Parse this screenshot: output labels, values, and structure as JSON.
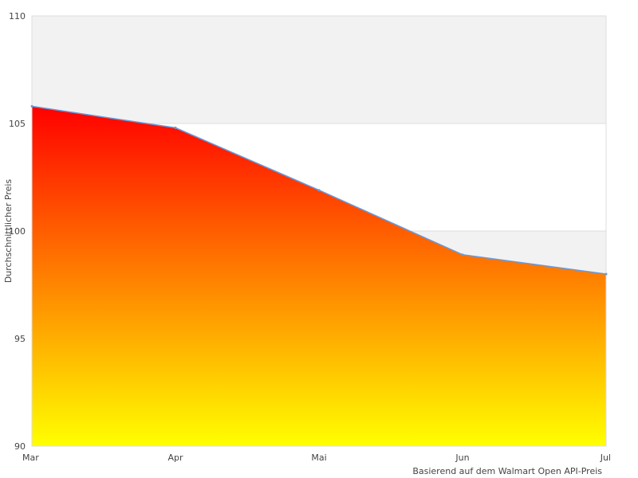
{
  "chart_data": {
    "type": "area",
    "x": [
      "Mar",
      "Apr",
      "Mai",
      "Jun",
      "Jul"
    ],
    "series": [
      {
        "values": [
          105.8,
          104.8,
          101.9,
          98.9,
          98.0
        ]
      }
    ],
    "ylabel": "Durchschnittlicher Preis",
    "xlabel": "Basierend auf dem Walmart Open API-Preis",
    "ylim": [
      90,
      110
    ],
    "yticks": [
      90,
      95,
      100,
      105,
      110
    ],
    "grid": true,
    "banded_background": true,
    "colors": {
      "fill_top": "#ff0000",
      "fill_bottom": "#ffff00",
      "line": "#6699dd",
      "band": "#f2f2f2",
      "grid": "#dddddd",
      "axis_text": "#444444"
    }
  }
}
